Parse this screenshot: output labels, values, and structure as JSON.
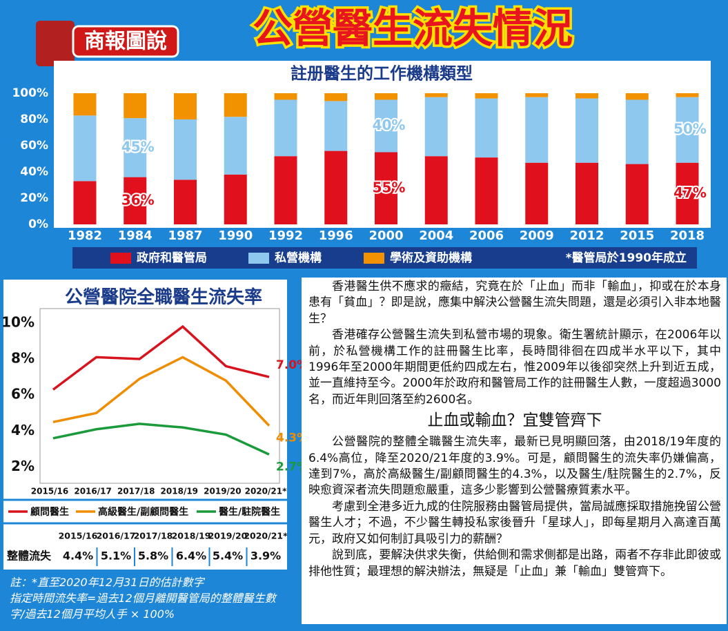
{
  "header": {
    "badge": "商報圖說",
    "title": "公營醫生流失情況"
  },
  "chart_data": [
    {
      "type": "bar",
      "stacked": true,
      "title": "註册醫生的工作機構類型",
      "categories": [
        "1982",
        "1984",
        "1987",
        "1990",
        "1992",
        "1996",
        "2000",
        "2004",
        "2006",
        "2009",
        "2012",
        "2015",
        "2018"
      ],
      "series": [
        {
          "name": "政府和醫管局",
          "color": "#e0101c",
          "values": [
            33,
            36,
            34,
            38,
            52,
            56,
            55,
            52,
            51,
            47,
            47,
            46,
            47
          ],
          "value_labels": [
            null,
            "36%",
            null,
            null,
            null,
            null,
            "55%",
            null,
            null,
            null,
            null,
            null,
            "47%"
          ]
        },
        {
          "name": "私營機構",
          "color": "#8ec8ee",
          "values": [
            50,
            45,
            46,
            44,
            43,
            38,
            40,
            45,
            45,
            50,
            49,
            49,
            50
          ],
          "value_labels": [
            null,
            "45%",
            null,
            null,
            null,
            null,
            "40%",
            null,
            null,
            null,
            null,
            null,
            "50%"
          ]
        },
        {
          "name": "學術及資助機構",
          "color": "#f39200",
          "values": [
            17,
            19,
            20,
            18,
            5,
            6,
            5,
            3,
            4,
            3,
            4,
            5,
            3
          ]
        }
      ],
      "ylim": [
        0,
        100
      ],
      "yticks": [
        {
          "value": 0,
          "label": "0%"
        },
        {
          "value": 20,
          "label": "20%"
        },
        {
          "value": 40,
          "label": "40%"
        },
        {
          "value": 60,
          "label": "60%"
        },
        {
          "value": 80,
          "label": "80%"
        },
        {
          "value": 100,
          "label": "100%"
        }
      ],
      "note": "*醫管局於1990年成立"
    },
    {
      "type": "line",
      "title": "公營醫院全職醫生流失率",
      "categories": [
        "2015/16",
        "2016/17",
        "2017/18",
        "2018/19",
        "2019/20",
        "2020/21*"
      ],
      "series": [
        {
          "name": "顧問醫生",
          "color": "#d7141e",
          "values": [
            6.3,
            8.1,
            8.0,
            9.8,
            7.6,
            7.0
          ],
          "value_labels": [
            null,
            null,
            null,
            null,
            null,
            "7.0%"
          ]
        },
        {
          "name": "高級醫生/副顧問醫生",
          "color": "#f08c00",
          "values": [
            4.5,
            5.0,
            6.9,
            8.1,
            6.8,
            4.3
          ],
          "value_labels": [
            null,
            null,
            null,
            null,
            null,
            "4.3%"
          ]
        },
        {
          "name": "醫生/駐院醫生",
          "color": "#1a9a3a",
          "values": [
            3.6,
            4.1,
            4.4,
            4.2,
            3.8,
            2.7
          ],
          "value_labels": [
            null,
            null,
            null,
            null,
            null,
            "2.7%"
          ]
        }
      ],
      "ylim": [
        1.1,
        10.8
      ],
      "yticks": [
        {
          "value": 2,
          "label": "2%"
        },
        {
          "value": 4,
          "label": "4%"
        },
        {
          "value": 6,
          "label": "6%"
        },
        {
          "value": 8,
          "label": "8%"
        },
        {
          "value": 10,
          "label": "10%"
        }
      ]
    }
  ],
  "table": {
    "columns": [
      "2015/16",
      "2016/17",
      "2017/18",
      "2018/19",
      "2019/20",
      "2020/21*"
    ],
    "rows": [
      [
        "整體流失",
        "4.4%",
        "5.1%",
        "5.8%",
        "6.4%",
        "5.4%",
        "3.9%"
      ]
    ]
  },
  "notes": [
    "註：*直至2020年12月31日的估計數字",
    "指定時間流失率=過去12個月離開醫管局的整體醫生數字/過去12個月平均人手 × 100%"
  ],
  "article": {
    "paragraphs_before": [
      "香港醫生供不應求的癥結，究竟在於「止血」而非「輸血」，抑或在於本身患有「貧血」？即是說，應集中解決公營醫生流失問題，還是必須引入非本地醫生？",
      "香港確存公營醫生流失到私營市場的現象。衛生署統計顯示，在2006年以前，於私營機構工作的註冊醫生比率，長時間徘徊在四成半水平以下，其中1996年至2000年期間更低約四成左右，惟2009年以後卻突然上升到近五成，並一直維持至今。2000年於政府和醫管局工作的註冊醫生人數，一度超過3000名，而近年則回落至約2600名。"
    ],
    "heading": "止血或輸血？宜雙管齊下",
    "paragraphs_after": [
      "公營醫院的整體全職醫生流失率，最新已見明顯回落，由2018/19年度的6.4%高位，降至2020/21年度的3.9%。可是，顧問醫生的流失率仍嫌偏高，達到7%，高於高級醫生/副顧問醫生的4.3%，以及醫生/駐院醫生的2.7%，反映愈資深者流失問題愈嚴重，這多少影響到公營醫療質素水平。",
      "考慮到全港多近九成的住院服務由醫管局提供，當局誠應採取措施挽留公營醫生人才；不過，不少醫生轉投私家後晉升「星球人」，即每星期月入高達百萬元，政府又如何制訂具吸引力的薪酬？",
      "說到底，要解決供求失衡，供給側和需求側都是出路，兩者不存非此即彼或排他性質；最理想的解決辦法，無疑是「止血」兼「輸血」雙管齊下。"
    ]
  }
}
